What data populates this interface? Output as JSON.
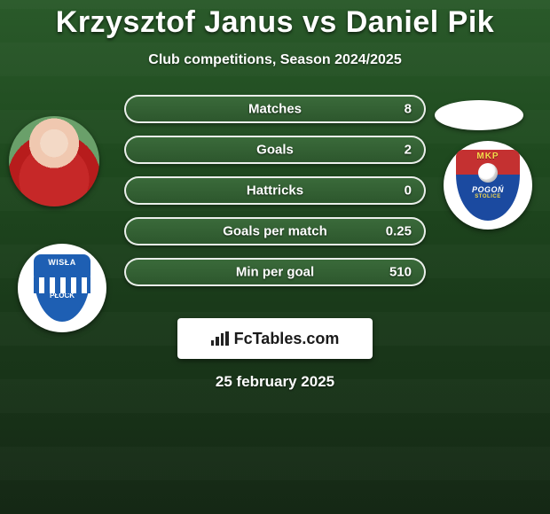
{
  "title": "Krzysztof Janus vs Daniel Pik",
  "subtitle": "Club competitions, Season 2024/2025",
  "date": "25 february 2025",
  "badge_text": "FcTables.com",
  "left_crest": {
    "line1": "WISŁA",
    "line2": "PŁOCK"
  },
  "right_crest": {
    "top": "MKP",
    "mid": "POGOŃ",
    "sub": "STOLICE"
  },
  "colors": {
    "pill_border": "#ffffff",
    "pill_bg_top": "#3a6a3a",
    "pill_bg_bottom": "#2d572d",
    "text": "#ffffff",
    "badge_bg": "#ffffff",
    "badge_text": "#1a1a1a",
    "left_crest_bg": "#ffffff",
    "left_crest_shield": "#1e5fb3",
    "right_crest_top": "#c43131",
    "right_crest_bottom": "#1b4aa0",
    "right_crest_accent": "#f6d94a"
  },
  "stats": [
    {
      "label": "Matches",
      "value": "8"
    },
    {
      "label": "Goals",
      "value": "2"
    },
    {
      "label": "Hattricks",
      "value": "0"
    },
    {
      "label": "Goals per match",
      "value": "0.25"
    },
    {
      "label": "Min per goal",
      "value": "510"
    }
  ]
}
